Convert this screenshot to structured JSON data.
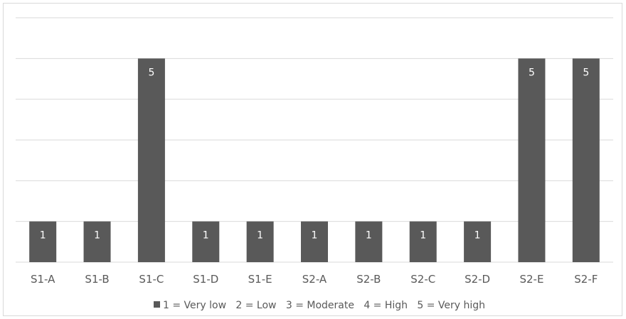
{
  "chart_data": {
    "type": "bar",
    "categories": [
      "S1-A",
      "S1-B",
      "S1-C",
      "S1-D",
      "S1-E",
      "S2-A",
      "S2-B",
      "S2-C",
      "S2-D",
      "S2-E",
      "S2-F"
    ],
    "series": [
      {
        "values": [
          1,
          1,
          5,
          1,
          1,
          1,
          1,
          1,
          1,
          5,
          5
        ]
      }
    ],
    "data_labels": [
      "1",
      "1",
      "5",
      "1",
      "1",
      "1",
      "1",
      "1",
      "1",
      "5",
      "5"
    ],
    "ylim": [
      0,
      6
    ],
    "grid": true,
    "legend_text": "1 = Very low   2 = Low   3 = Moderate   4 = High   5 = Very high",
    "legend_position": "bottom",
    "bar_color": "#595959",
    "grid_color": "#d9d9d9"
  }
}
